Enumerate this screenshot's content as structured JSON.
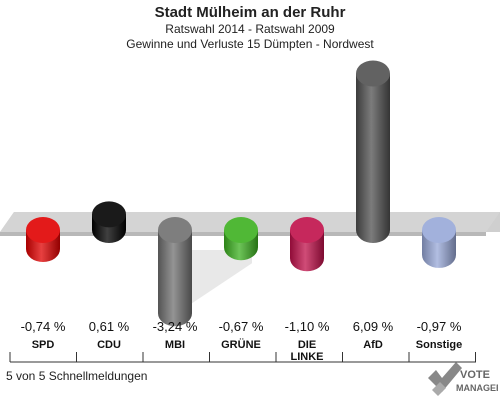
{
  "header": {
    "title": "Stadt Mülheim an der Ruhr",
    "subtitle1": "Ratswahl 2014 - Ratswahl 2009",
    "subtitle2": "Gewinne und Verluste 15 Dümpten - Nordwest"
  },
  "footer": {
    "text": "5 von 5 Schnellmeldungen"
  },
  "logo": {
    "line1": "VOTE",
    "line2": "MANAGER"
  },
  "chart_data": {
    "type": "bar",
    "title": "Stadt Mülheim an der Ruhr",
    "categories": [
      "SPD",
      "CDU",
      "MBI",
      "GRÜNE",
      "DIE LINKE",
      "AfD",
      "Sonstige"
    ],
    "category_lines": [
      [
        "SPD"
      ],
      [
        "CDU"
      ],
      [
        "MBI"
      ],
      [
        "GRÜNE"
      ],
      [
        "DIE",
        "LINKE"
      ],
      [
        "AfD"
      ],
      [
        "Sonstige"
      ]
    ],
    "values": [
      -0.74,
      0.61,
      -3.24,
      -0.67,
      -1.1,
      6.09,
      -0.97
    ],
    "value_labels": [
      "-0,74 %",
      "0,61 %",
      "-3,24 %",
      "-0,67 %",
      "-1,10 %",
      "6,09 %",
      "-0,97 %"
    ],
    "colors": [
      "#e00000",
      "#000000",
      "#707070",
      "#3cb020",
      "#c0104a",
      "#505050",
      "#98a8d8"
    ],
    "ylim": [
      -3.24,
      6.09
    ],
    "grid": false,
    "legend": "none"
  }
}
